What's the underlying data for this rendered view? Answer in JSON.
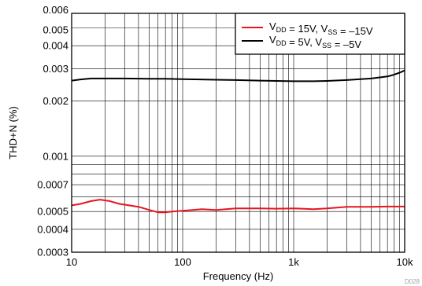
{
  "chart_data": {
    "type": "line",
    "xscale": "log",
    "yscale": "log",
    "xlim": [
      10,
      10000
    ],
    "ylim": [
      0.0003,
      0.006
    ],
    "xlabel": "Frequency (Hz)",
    "ylabel": "THD+N (%)",
    "figure_id": "D028",
    "grid": true,
    "legend_position": "top-right",
    "x_ticks": [
      {
        "value": 10,
        "label": "10"
      },
      {
        "value": 100,
        "label": "100"
      },
      {
        "value": 1000,
        "label": "1k"
      },
      {
        "value": 10000,
        "label": "10k"
      }
    ],
    "y_ticks": [
      {
        "value": 0.0003,
        "label": "0.0003"
      },
      {
        "value": 0.0004,
        "label": "0.0004"
      },
      {
        "value": 0.0005,
        "label": "0.0005"
      },
      {
        "value": 0.0007,
        "label": "0.0007"
      },
      {
        "value": 0.001,
        "label": "0.001"
      },
      {
        "value": 0.002,
        "label": "0.002"
      },
      {
        "value": 0.003,
        "label": "0.003"
      },
      {
        "value": 0.004,
        "label": "0.004"
      },
      {
        "value": 0.005,
        "label": "0.005"
      },
      {
        "value": 0.006,
        "label": "0.006"
      }
    ],
    "series": [
      {
        "name": "VDD = 15V, VSS = –15V",
        "legend": [
          {
            "t": "V"
          },
          {
            "t": "DD",
            "sub": true
          },
          {
            "t": " = 15V, V"
          },
          {
            "t": "SS",
            "sub": true
          },
          {
            "t": " = –15V"
          }
        ],
        "color": "#e8141e",
        "x": [
          10,
          12,
          15,
          18,
          22,
          27,
          33,
          40,
          50,
          60,
          70,
          80,
          100,
          150,
          200,
          300,
          500,
          700,
          1000,
          1500,
          2000,
          3000,
          5000,
          7000,
          10000
        ],
        "y": [
          0.00054,
          0.00055,
          0.00057,
          0.00058,
          0.00057,
          0.00055,
          0.00054,
          0.00053,
          0.00051,
          0.000495,
          0.000495,
          0.0005,
          0.000505,
          0.000515,
          0.00051,
          0.00052,
          0.00052,
          0.000518,
          0.00052,
          0.000515,
          0.00052,
          0.00053,
          0.00053,
          0.000532,
          0.000532
        ]
      },
      {
        "name": "VDD = 5V, VSS = –5V",
        "legend": [
          {
            "t": "V"
          },
          {
            "t": "DD",
            "sub": true
          },
          {
            "t": " = 5V, V"
          },
          {
            "t": "SS",
            "sub": true
          },
          {
            "t": " = –5V"
          }
        ],
        "color": "#000000",
        "x": [
          10,
          12,
          15,
          20,
          30,
          50,
          70,
          100,
          200,
          300,
          500,
          700,
          1000,
          1500,
          2000,
          3000,
          5000,
          7000,
          8000,
          9000,
          10000
        ],
        "y": [
          0.00258,
          0.00262,
          0.00265,
          0.00265,
          0.00265,
          0.00264,
          0.00264,
          0.00263,
          0.00261,
          0.0026,
          0.00258,
          0.00257,
          0.00256,
          0.00256,
          0.00257,
          0.0026,
          0.00265,
          0.00272,
          0.00278,
          0.00285,
          0.00293
        ]
      }
    ]
  }
}
